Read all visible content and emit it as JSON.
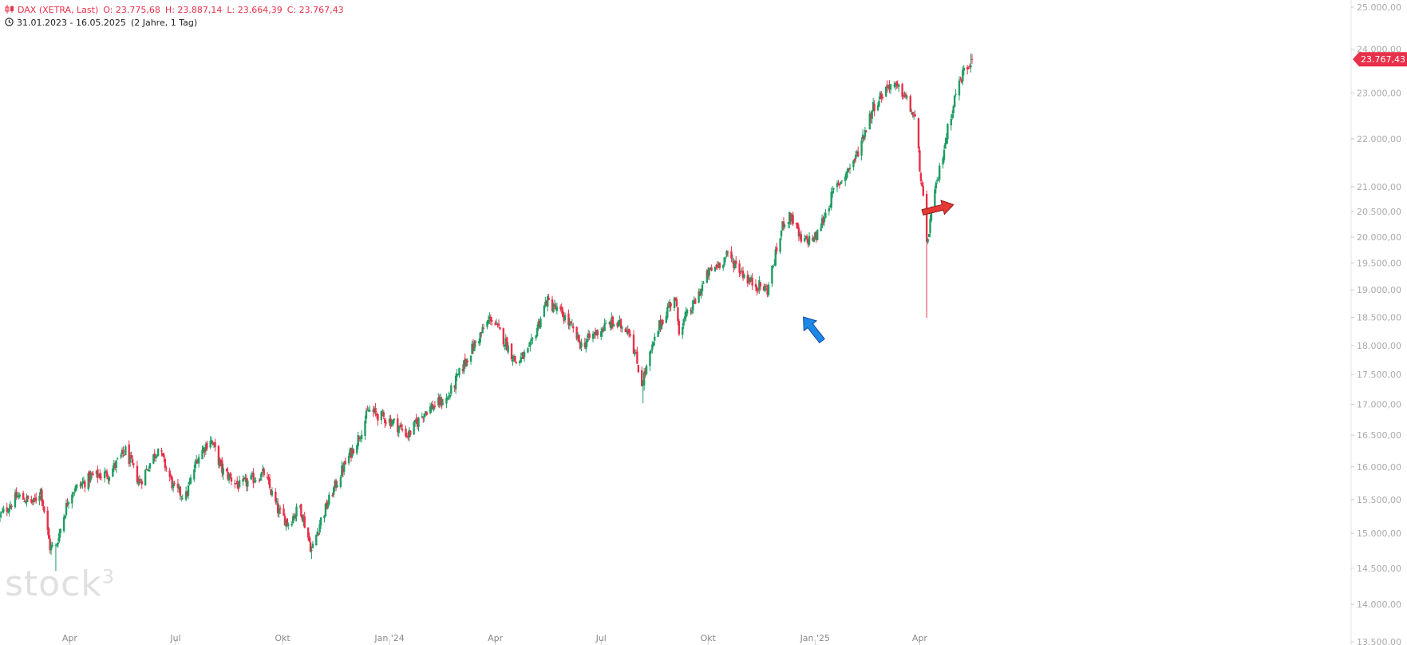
{
  "header": {
    "instrument": "DAX (XETRA, Last)",
    "open": "O: 23.775,68",
    "high": "H: 23.887,14",
    "low": "L: 23.664,39",
    "close": "C: 23.767,43",
    "range": "31.01.2023 - 16.05.2025",
    "span": "(2 Jahre, 1 Tag)"
  },
  "logo": {
    "text": "stock",
    "superscript": "3"
  },
  "colors": {
    "up": "#1f9d63",
    "down": "#e8304a",
    "axis": "#dddddd",
    "badge": "#e8304a",
    "blue_arrow": "#1e88e5",
    "red_arrow": "#e53935"
  },
  "chart_data": {
    "type": "candlestick",
    "title": "DAX (XETRA, Last)",
    "period": "31.01.2023 - 16.05.2025",
    "interval": "1 Tag",
    "yaxis": {
      "scale": "log",
      "ylim": [
        13500,
        25000
      ],
      "ticks": [
        13500,
        14000,
        14500,
        15000,
        15500,
        16000,
        16500,
        17000,
        17500,
        18000,
        18500,
        19000,
        19500,
        20000,
        20500,
        21000,
        22000,
        23000,
        24000,
        25000
      ],
      "tick_labels": [
        "13.500,00",
        "14.000,00",
        "14.500,00",
        "15.000,00",
        "15.500,00",
        "16.000,00",
        "16.500,00",
        "17.000,00",
        "17.500,00",
        "18.000,00",
        "18.500,00",
        "19.000,00",
        "19.500,00",
        "20.000,00",
        "20.500,00",
        "21.000,00",
        "22.000,00",
        "23.000,00",
        "24.000,00",
        "25.000,00"
      ]
    },
    "xaxis": {
      "tick_labels": [
        "Apr",
        "Jul",
        "Okt",
        "Jan '24",
        "Apr",
        "Jul",
        "Okt",
        "Jan '25",
        "Apr"
      ],
      "tick_dates": [
        "2023-04-01",
        "2023-07-01",
        "2023-10-01",
        "2024-01-01",
        "2024-04-01",
        "2024-07-01",
        "2024-10-01",
        "2025-01-01",
        "2025-04-01"
      ],
      "start": "2023-01-31",
      "end": "2025-05-16"
    },
    "last_price": 23767.43,
    "last_price_label": "23.767,43",
    "series": [
      {
        "d": "2023-01-31",
        "c": 15250
      },
      {
        "d": "2023-02-15",
        "c": 15550
      },
      {
        "d": "2023-03-01",
        "c": 15450
      },
      {
        "d": "2023-03-07",
        "c": 15650
      },
      {
        "d": "2023-03-15",
        "c": 14800
      },
      {
        "d": "2023-03-20",
        "c": 14800
      },
      {
        "d": "2023-04-01",
        "c": 15600
      },
      {
        "d": "2023-04-20",
        "c": 15850
      },
      {
        "d": "2023-05-05",
        "c": 15900
      },
      {
        "d": "2023-05-19",
        "c": 16250
      },
      {
        "d": "2023-05-31",
        "c": 15750
      },
      {
        "d": "2023-06-16",
        "c": 16300
      },
      {
        "d": "2023-06-30",
        "c": 15650
      },
      {
        "d": "2023-07-10",
        "c": 15550
      },
      {
        "d": "2023-07-20",
        "c": 16150
      },
      {
        "d": "2023-07-31",
        "c": 16450
      },
      {
        "d": "2023-08-10",
        "c": 15950
      },
      {
        "d": "2023-08-25",
        "c": 15700
      },
      {
        "d": "2023-09-15",
        "c": 15900
      },
      {
        "d": "2023-09-28",
        "c": 15300
      },
      {
        "d": "2023-10-06",
        "c": 15150
      },
      {
        "d": "2023-10-16",
        "c": 15400
      },
      {
        "d": "2023-10-26",
        "c": 14750
      },
      {
        "d": "2023-11-03",
        "c": 15200
      },
      {
        "d": "2023-11-20",
        "c": 15900
      },
      {
        "d": "2023-12-05",
        "c": 16450
      },
      {
        "d": "2023-12-14",
        "c": 16900
      },
      {
        "d": "2024-01-05",
        "c": 16700
      },
      {
        "d": "2024-01-17",
        "c": 16500
      },
      {
        "d": "2024-02-01",
        "c": 16900
      },
      {
        "d": "2024-02-20",
        "c": 17100
      },
      {
        "d": "2024-03-08",
        "c": 17800
      },
      {
        "d": "2024-03-28",
        "c": 18500
      },
      {
        "d": "2024-04-10",
        "c": 18050
      },
      {
        "d": "2024-04-19",
        "c": 17700
      },
      {
        "d": "2024-04-30",
        "c": 17900
      },
      {
        "d": "2024-05-15",
        "c": 18800
      },
      {
        "d": "2024-05-31",
        "c": 18500
      },
      {
        "d": "2024-06-14",
        "c": 18000
      },
      {
        "d": "2024-06-28",
        "c": 18250
      },
      {
        "d": "2024-07-10",
        "c": 18400
      },
      {
        "d": "2024-07-25",
        "c": 18300
      },
      {
        "d": "2024-08-05",
        "c": 17350
      },
      {
        "d": "2024-08-20",
        "c": 18350
      },
      {
        "d": "2024-09-02",
        "c": 18900
      },
      {
        "d": "2024-09-06",
        "c": 18300
      },
      {
        "d": "2024-09-18",
        "c": 18700
      },
      {
        "d": "2024-10-01",
        "c": 19300
      },
      {
        "d": "2024-10-18",
        "c": 19650
      },
      {
        "d": "2024-11-06",
        "c": 19150
      },
      {
        "d": "2024-11-21",
        "c": 19000
      },
      {
        "d": "2024-12-05",
        "c": 20300
      },
      {
        "d": "2024-12-12",
        "c": 20400
      },
      {
        "d": "2024-12-20",
        "c": 19900
      },
      {
        "d": "2025-01-02",
        "c": 20000
      },
      {
        "d": "2025-01-17",
        "c": 20900
      },
      {
        "d": "2025-02-05",
        "c": 21600
      },
      {
        "d": "2025-02-20",
        "c": 22700
      },
      {
        "d": "2025-03-06",
        "c": 23200
      },
      {
        "d": "2025-03-18",
        "c": 23000
      },
      {
        "d": "2025-03-28",
        "c": 22400
      },
      {
        "d": "2025-04-04",
        "c": 20700
      },
      {
        "d": "2025-04-07",
        "c": 19800
      },
      {
        "d": "2025-04-11",
        "c": 20500
      },
      {
        "d": "2025-04-17",
        "c": 21200
      },
      {
        "d": "2025-04-25",
        "c": 22200
      },
      {
        "d": "2025-05-02",
        "c": 23000
      },
      {
        "d": "2025-05-09",
        "c": 23500
      },
      {
        "d": "2025-05-16",
        "c": 23767.43
      }
    ],
    "extremes": [
      {
        "d": "2023-03-20",
        "low": 14460
      },
      {
        "d": "2023-10-26",
        "low": 14630
      },
      {
        "d": "2024-08-06",
        "low": 17020
      },
      {
        "d": "2025-04-07",
        "low": 18490
      },
      {
        "d": "2025-05-15",
        "high": 23900
      }
    ],
    "annotations": [
      {
        "type": "arrow",
        "color": "blue",
        "direction": "up-left",
        "near": "2024-11"
      },
      {
        "type": "arrow",
        "color": "red",
        "direction": "right",
        "near": "2025-04"
      }
    ]
  }
}
